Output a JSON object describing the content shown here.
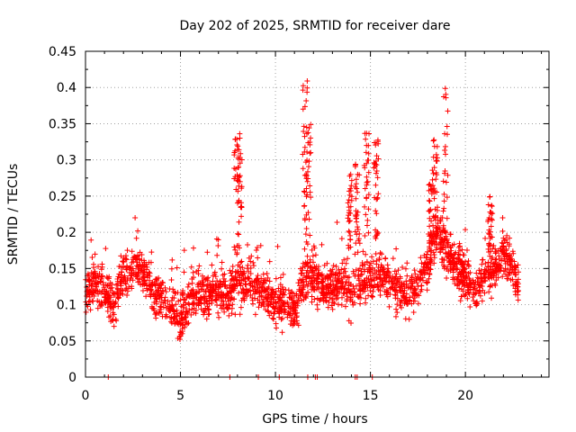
{
  "chart_data": {
    "type": "scatter",
    "title": "Day 202 of 2025, SRMTID for receiver dare",
    "xlabel": "GPS time / hours",
    "ylabel": "SRMTID / TECUs",
    "xlim": [
      0,
      24.4
    ],
    "ylim": [
      0,
      0.45
    ],
    "xticks": [
      0,
      5,
      10,
      15,
      20
    ],
    "xtick_labels": [
      "0",
      "5",
      "10",
      "15",
      "20"
    ],
    "yticks": [
      0,
      0.05,
      0.1,
      0.15,
      0.2,
      0.25,
      0.3,
      0.35,
      0.4,
      0.45
    ],
    "ytick_labels": [
      "0",
      "0.05",
      "0.1",
      "0.15",
      "0.2",
      "0.25",
      "0.3",
      "0.35",
      "0.4",
      "0.45"
    ],
    "grid": true,
    "marker": "+",
    "color": "#ff0000",
    "series": [
      {
        "name": "SRMTID",
        "points_note": "approximately 2500 points, values between 0 and 0.41 TECU",
        "background_level": [
          [
            0.0,
            0.12
          ],
          [
            0.5,
            0.13
          ],
          [
            1.0,
            0.12
          ],
          [
            1.5,
            0.1
          ],
          [
            2.0,
            0.14
          ],
          [
            2.5,
            0.15
          ],
          [
            3.0,
            0.15
          ],
          [
            3.5,
            0.12
          ],
          [
            4.0,
            0.11
          ],
          [
            4.5,
            0.1
          ],
          [
            5.0,
            0.08
          ],
          [
            5.5,
            0.11
          ],
          [
            6.0,
            0.12
          ],
          [
            6.5,
            0.11
          ],
          [
            7.0,
            0.12
          ],
          [
            7.5,
            0.11
          ],
          [
            8.0,
            0.13
          ],
          [
            8.5,
            0.13
          ],
          [
            9.0,
            0.12
          ],
          [
            9.5,
            0.12
          ],
          [
            10.0,
            0.1
          ],
          [
            10.5,
            0.1
          ],
          [
            11.0,
            0.09
          ],
          [
            11.5,
            0.13
          ],
          [
            12.0,
            0.14
          ],
          [
            12.5,
            0.12
          ],
          [
            13.0,
            0.13
          ],
          [
            13.5,
            0.13
          ],
          [
            14.0,
            0.12
          ],
          [
            14.5,
            0.13
          ],
          [
            15.0,
            0.14
          ],
          [
            15.5,
            0.14
          ],
          [
            16.0,
            0.13
          ],
          [
            16.5,
            0.12
          ],
          [
            17.0,
            0.11
          ],
          [
            17.5,
            0.13
          ],
          [
            18.0,
            0.16
          ],
          [
            18.5,
            0.2
          ],
          [
            19.0,
            0.17
          ],
          [
            19.5,
            0.15
          ],
          [
            20.0,
            0.14
          ],
          [
            20.5,
            0.12
          ],
          [
            21.0,
            0.14
          ],
          [
            21.5,
            0.15
          ],
          [
            22.0,
            0.17
          ],
          [
            22.5,
            0.15
          ],
          [
            22.8,
            0.12
          ]
        ],
        "bursts": [
          {
            "center": 7.95,
            "peak": 0.33
          },
          {
            "center": 8.15,
            "peak": 0.35
          },
          {
            "center": 11.55,
            "peak": 0.41
          },
          {
            "center": 11.75,
            "peak": 0.36
          },
          {
            "center": 13.9,
            "peak": 0.28
          },
          {
            "center": 14.3,
            "peak": 0.3
          },
          {
            "center": 14.8,
            "peak": 0.34
          },
          {
            "center": 15.3,
            "peak": 0.33
          },
          {
            "center": 18.2,
            "peak": 0.29
          },
          {
            "center": 18.4,
            "peak": 0.33
          },
          {
            "center": 18.95,
            "peak": 0.405
          },
          {
            "center": 21.3,
            "peak": 0.25
          }
        ],
        "zero_points": [
          1.2,
          7.6,
          9.1,
          10.2,
          11.7,
          12.1,
          12.2,
          14.2,
          14.3,
          15.1
        ]
      }
    ]
  }
}
